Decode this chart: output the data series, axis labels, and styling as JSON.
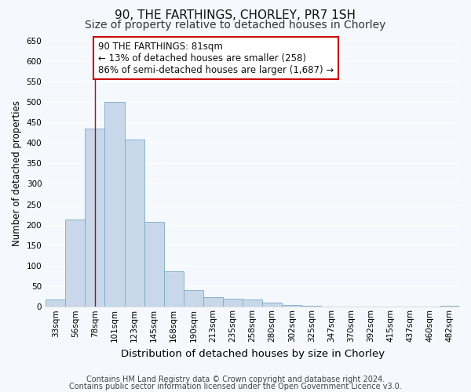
{
  "title_line1": "90, THE FARTHINGS, CHORLEY, PR7 1SH",
  "title_line2": "Size of property relative to detached houses in Chorley",
  "xlabel": "Distribution of detached houses by size in Chorley",
  "ylabel": "Number of detached properties",
  "categories": [
    "33sqm",
    "56sqm",
    "78sqm",
    "101sqm",
    "123sqm",
    "145sqm",
    "168sqm",
    "190sqm",
    "213sqm",
    "235sqm",
    "258sqm",
    "280sqm",
    "302sqm",
    "325sqm",
    "347sqm",
    "370sqm",
    "392sqm",
    "415sqm",
    "437sqm",
    "460sqm",
    "482sqm"
  ],
  "values": [
    18,
    212,
    435,
    500,
    408,
    208,
    86,
    40,
    23,
    20,
    18,
    10,
    5,
    2,
    1,
    1,
    0,
    0,
    0,
    0,
    3
  ],
  "bar_color": "#c8d8ea",
  "bar_edge_color": "#7aaac8",
  "vline_x_index": 2,
  "vline_color": "#cc0000",
  "ylim": [
    0,
    650
  ],
  "yticks": [
    0,
    50,
    100,
    150,
    200,
    250,
    300,
    350,
    400,
    450,
    500,
    550,
    600,
    650
  ],
  "annotation_line1": "90 THE FARTHINGS: 81sqm",
  "annotation_line2": "← 13% of detached houses are smaller (258)",
  "annotation_line3": "86% of semi-detached houses are larger (1,687) →",
  "annotation_box_color": "#cc0000",
  "footer_line1": "Contains HM Land Registry data © Crown copyright and database right 2024.",
  "footer_line2": "Contains public sector information licensed under the Open Government Licence v3.0.",
  "background_color": "#f5f8fc",
  "grid_color": "#ffffff",
  "title1_fontsize": 11,
  "title2_fontsize": 10,
  "xlabel_fontsize": 9.5,
  "ylabel_fontsize": 8.5,
  "tick_fontsize": 7.5,
  "ann_fontsize": 8.5,
  "footer_fontsize": 7
}
